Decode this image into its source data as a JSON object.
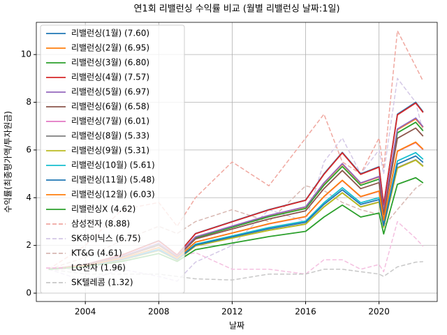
{
  "chart_data": {
    "type": "line",
    "title": "연1회 리밸런싱 수익률 비교 (월별 리밸런싱 날짜:1일)",
    "x_label": "날짜",
    "y_label": "수익률(최종평가액/투자원금)",
    "x": [
      2002,
      2004,
      2006,
      2008,
      2009,
      2010,
      2012,
      2014,
      2016,
      2017,
      2018,
      2019,
      2020,
      2020.25,
      2021,
      2022,
      2022.4
    ],
    "xlim": [
      2001.33,
      2023.17
    ],
    "xticks": [
      2004,
      2008,
      2012,
      2016,
      2020
    ],
    "ylim": [
      -0.35,
      11.35
    ],
    "yticks": [
      0,
      2,
      4,
      6,
      8,
      10
    ],
    "grid": true,
    "legend": "upper left",
    "series": [
      {
        "name": "리밸런싱(1월) (7.60)",
        "color": "#1f77b4",
        "style": "solid",
        "values": [
          1,
          1.2,
          1.6,
          2.2,
          1.6,
          2.5,
          3.0,
          3.5,
          3.9,
          5.0,
          5.9,
          5.0,
          5.3,
          3.7,
          7.5,
          8.0,
          7.6
        ]
      },
      {
        "name": "리밸런싱(2월) (6.95)",
        "color": "#ff7f0e",
        "style": "solid",
        "values": [
          1,
          1.18,
          1.54,
          2.08,
          1.54,
          2.35,
          2.8,
          3.25,
          3.61,
          4.6,
          5.41,
          4.6,
          4.87,
          3.43,
          6.85,
          7.3,
          6.95
        ]
      },
      {
        "name": "리밸런싱(3월) (6.80)",
        "color": "#2ca02c",
        "style": "solid",
        "values": [
          1,
          1.18,
          1.53,
          2.05,
          1.53,
          2.32,
          2.76,
          3.2,
          3.55,
          4.52,
          5.31,
          4.52,
          4.78,
          3.38,
          6.72,
          7.16,
          6.8
        ]
      },
      {
        "name": "리밸런싱(4월) (7.57)",
        "color": "#d62728",
        "style": "solid",
        "values": [
          1,
          1.2,
          1.6,
          2.19,
          1.6,
          2.49,
          2.99,
          3.49,
          3.89,
          4.98,
          5.88,
          4.98,
          5.28,
          3.69,
          7.47,
          7.97,
          7.57
        ]
      },
      {
        "name": "리밸런싱(5월) (6.97)",
        "color": "#9467bd",
        "style": "solid",
        "values": [
          1,
          1.18,
          1.54,
          2.09,
          1.54,
          2.36,
          2.81,
          3.26,
          3.62,
          4.62,
          5.43,
          4.62,
          4.89,
          3.44,
          6.88,
          7.34,
          6.97
        ]
      },
      {
        "name": "리밸런싱(6월) (6.58)",
        "color": "#8c564b",
        "style": "solid",
        "values": [
          1,
          1.17,
          1.51,
          2.01,
          1.51,
          2.27,
          2.69,
          3.11,
          3.45,
          4.38,
          5.14,
          4.38,
          4.63,
          3.28,
          6.49,
          6.92,
          6.58
        ]
      },
      {
        "name": "리밸런싱(7월) (6.01)",
        "color": "#e377c2",
        "style": "solid",
        "values": [
          1,
          1.15,
          1.46,
          1.91,
          1.46,
          2.14,
          2.52,
          2.9,
          3.2,
          4.04,
          4.72,
          4.04,
          4.27,
          3.05,
          5.94,
          6.31,
          6.01
        ]
      },
      {
        "name": "리밸런싱(8월) (5.33)",
        "color": "#7f7f7f",
        "style": "solid",
        "values": [
          1,
          1.13,
          1.39,
          1.79,
          1.39,
          1.98,
          2.31,
          2.64,
          2.9,
          3.62,
          4.21,
          3.62,
          3.82,
          2.77,
          5.26,
          5.59,
          5.33
        ]
      },
      {
        "name": "리밸런싱(9월) (5.31)",
        "color": "#bcbd22",
        "style": "solid",
        "values": [
          1,
          1.13,
          1.39,
          1.78,
          1.39,
          1.98,
          2.31,
          2.63,
          2.89,
          3.61,
          4.2,
          3.61,
          3.81,
          2.76,
          5.24,
          5.57,
          5.31
        ]
      },
      {
        "name": "리밸런싱(10월) (5.61)",
        "color": "#17becf",
        "style": "solid",
        "values": [
          1,
          1.14,
          1.42,
          1.84,
          1.42,
          2.05,
          2.4,
          2.75,
          3.02,
          3.79,
          4.42,
          3.79,
          4.0,
          2.88,
          5.54,
          5.89,
          5.61
        ]
      },
      {
        "name": "리밸런싱(11월) (5.48)",
        "color": "#1f77b4",
        "style": "solid",
        "values": [
          1,
          1.14,
          1.41,
          1.81,
          1.41,
          2.02,
          2.36,
          2.7,
          2.97,
          3.72,
          4.33,
          3.72,
          3.92,
          2.83,
          5.41,
          5.75,
          5.48
        ]
      },
      {
        "name": "리밸런싱(12월) (6.03)",
        "color": "#ff7f0e",
        "style": "solid",
        "values": [
          1,
          1.15,
          1.46,
          1.91,
          1.46,
          2.14,
          2.52,
          2.91,
          3.21,
          4.05,
          4.73,
          4.05,
          4.28,
          3.06,
          5.95,
          6.33,
          6.03
        ]
      },
      {
        "name": "리밸런싱X (4.62)",
        "color": "#2ca02c",
        "style": "solid",
        "values": [
          1,
          1.11,
          1.33,
          1.66,
          1.33,
          1.82,
          2.1,
          2.37,
          2.59,
          3.19,
          3.69,
          3.19,
          3.36,
          2.48,
          4.56,
          4.84,
          4.62
        ]
      },
      {
        "name": "삼성전자 (8.88)",
        "color": "#f0a8a0",
        "style": "dashed",
        "values": [
          1.0,
          2.0,
          3.5,
          3.8,
          2.8,
          4.0,
          5.5,
          4.5,
          6.5,
          7.5,
          5.5,
          5.0,
          6.5,
          5.2,
          11.0,
          9.5,
          8.88
        ]
      },
      {
        "name": "SK하이닉스 (6.75)",
        "color": "#d4c8e6",
        "style": "dashed",
        "values": [
          1.0,
          0.5,
          1.0,
          0.7,
          0.5,
          1.3,
          2.0,
          3.5,
          3.0,
          5.5,
          6.5,
          5.0,
          6.0,
          5.0,
          9.0,
          8.0,
          6.75
        ]
      },
      {
        "name": "KT&G (4.61)",
        "color": "#d8b8b2",
        "style": "dashed",
        "values": [
          1.0,
          1.5,
          2.2,
          2.8,
          2.5,
          3.0,
          3.5,
          3.0,
          4.5,
          4.3,
          3.8,
          3.5,
          3.3,
          2.8,
          3.5,
          4.4,
          4.61
        ]
      },
      {
        "name": "LG전자 (1.96)",
        "color": "#f4c0e0",
        "style": "dashed",
        "values": [
          1.0,
          1.0,
          1.2,
          2.0,
          1.5,
          1.7,
          1.0,
          1.0,
          0.8,
          1.4,
          1.4,
          1.0,
          1.2,
          0.9,
          3.0,
          2.3,
          1.96
        ]
      },
      {
        "name": "SK텔레콤 (1.32)",
        "color": "#c8c8c8",
        "style": "dashed",
        "values": [
          1.0,
          0.8,
          0.8,
          0.8,
          0.7,
          0.6,
          0.55,
          0.8,
          0.8,
          1.0,
          1.0,
          0.9,
          0.8,
          0.7,
          1.1,
          1.3,
          1.32
        ]
      }
    ]
  }
}
